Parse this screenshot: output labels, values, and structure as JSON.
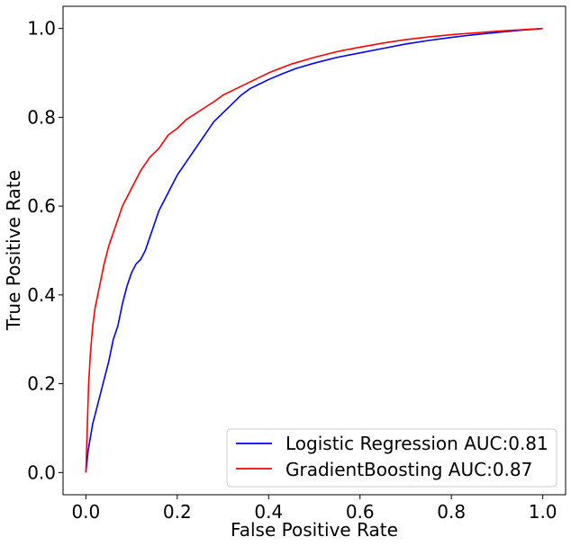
{
  "chart_data": {
    "type": "line",
    "title": "",
    "xlabel": "False Positive Rate",
    "ylabel": "True Positive Rate",
    "xlim": [
      -0.05,
      1.05
    ],
    "ylim": [
      -0.05,
      1.05
    ],
    "xticks": [
      0.0,
      0.2,
      0.4,
      0.6,
      0.8,
      1.0
    ],
    "xtick_labels": [
      "0.0",
      "0.2",
      "0.4",
      "0.6",
      "0.8",
      "1.0"
    ],
    "yticks": [
      0.0,
      0.2,
      0.4,
      0.6,
      0.8,
      1.0
    ],
    "ytick_labels": [
      "0.0",
      "0.2",
      "0.4",
      "0.6",
      "0.8",
      "1.0"
    ],
    "grid": false,
    "legend_position": "bottom-right",
    "series": [
      {
        "name": "Logistic Regression AUC:0.81",
        "color": "#0000ff",
        "x": [
          0.0,
          0.005,
          0.01,
          0.015,
          0.02,
          0.03,
          0.04,
          0.05,
          0.06,
          0.07,
          0.08,
          0.09,
          0.1,
          0.11,
          0.12,
          0.13,
          0.14,
          0.15,
          0.16,
          0.17,
          0.18,
          0.2,
          0.22,
          0.24,
          0.26,
          0.28,
          0.3,
          0.32,
          0.34,
          0.36,
          0.38,
          0.4,
          0.43,
          0.46,
          0.5,
          0.55,
          0.6,
          0.65,
          0.7,
          0.75,
          0.8,
          0.85,
          0.9,
          0.95,
          1.0
        ],
        "y": [
          0.0,
          0.05,
          0.08,
          0.11,
          0.13,
          0.17,
          0.21,
          0.25,
          0.3,
          0.33,
          0.38,
          0.42,
          0.45,
          0.47,
          0.48,
          0.5,
          0.53,
          0.56,
          0.59,
          0.61,
          0.63,
          0.67,
          0.7,
          0.73,
          0.76,
          0.79,
          0.81,
          0.83,
          0.85,
          0.865,
          0.875,
          0.885,
          0.898,
          0.91,
          0.922,
          0.935,
          0.945,
          0.955,
          0.965,
          0.973,
          0.98,
          0.986,
          0.991,
          0.996,
          1.0
        ]
      },
      {
        "name": "GradientBoosting AUC:0.87",
        "color": "#ff0000",
        "x": [
          0.0,
          0.003,
          0.006,
          0.01,
          0.015,
          0.02,
          0.03,
          0.04,
          0.05,
          0.06,
          0.07,
          0.08,
          0.1,
          0.12,
          0.14,
          0.16,
          0.18,
          0.2,
          0.22,
          0.25,
          0.28,
          0.3,
          0.33,
          0.36,
          0.4,
          0.45,
          0.5,
          0.55,
          0.6,
          0.65,
          0.7,
          0.75,
          0.8,
          0.85,
          0.9,
          0.95,
          1.0
        ],
        "y": [
          0.0,
          0.1,
          0.2,
          0.27,
          0.33,
          0.37,
          0.42,
          0.47,
          0.51,
          0.54,
          0.57,
          0.6,
          0.64,
          0.68,
          0.71,
          0.73,
          0.76,
          0.775,
          0.795,
          0.815,
          0.835,
          0.85,
          0.865,
          0.88,
          0.9,
          0.92,
          0.935,
          0.948,
          0.958,
          0.967,
          0.975,
          0.981,
          0.986,
          0.99,
          0.994,
          0.997,
          1.0
        ]
      }
    ]
  }
}
